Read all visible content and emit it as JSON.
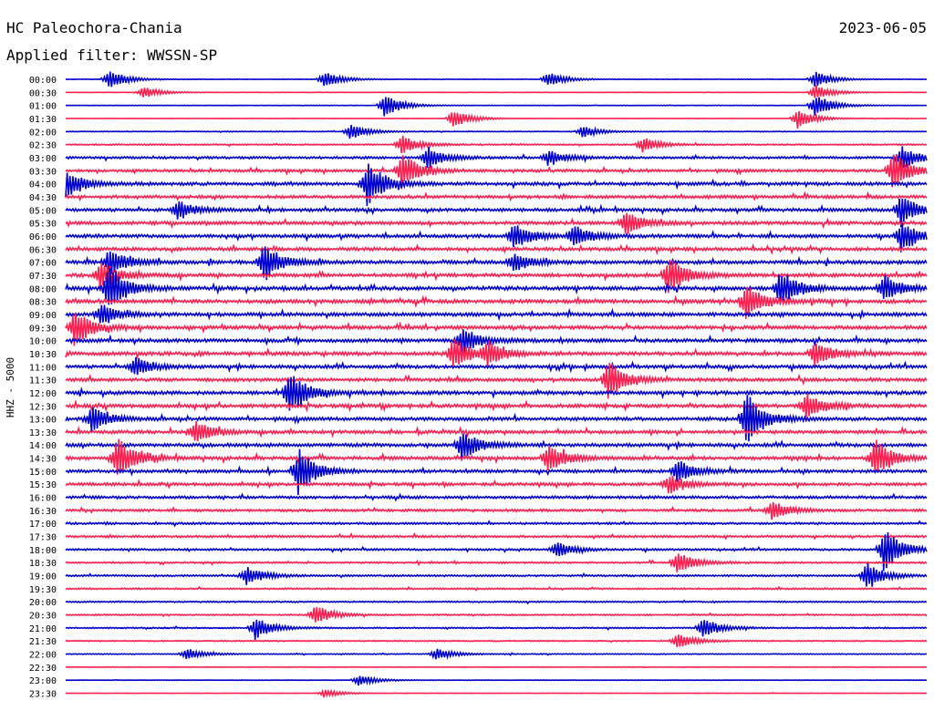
{
  "header": {
    "station": "HC Paleochora-Chania",
    "date": "2023-06-05",
    "filter": "Applied filter: WWSSN-SP"
  },
  "chart_data": {
    "type": "line",
    "title": "HC Paleochora-Chania",
    "channel_label": "HHZ - 5000",
    "row_times": [
      "00:00",
      "00:30",
      "01:00",
      "01:30",
      "02:00",
      "02:30",
      "03:00",
      "03:30",
      "04:00",
      "04:30",
      "05:00",
      "05:30",
      "06:00",
      "06:30",
      "07:00",
      "07:30",
      "08:00",
      "08:30",
      "09:00",
      "09:30",
      "10:00",
      "10:30",
      "11:00",
      "11:30",
      "12:00",
      "12:30",
      "13:00",
      "13:30",
      "14:00",
      "14:30",
      "15:00",
      "15:30",
      "16:00",
      "16:30",
      "17:00",
      "17:30",
      "18:00",
      "18:30",
      "19:00",
      "19:30",
      "20:00",
      "20:30",
      "21:00",
      "21:30",
      "22:00",
      "22:30",
      "23:00",
      "23:30"
    ],
    "row_noise_level": [
      0.15,
      0.1,
      0.12,
      0.12,
      0.2,
      0.35,
      0.6,
      0.7,
      0.85,
      0.8,
      0.8,
      0.85,
      0.85,
      0.85,
      0.9,
      0.9,
      0.95,
      0.95,
      0.9,
      0.9,
      0.9,
      0.9,
      0.85,
      0.85,
      0.9,
      0.9,
      0.85,
      0.85,
      0.85,
      0.85,
      0.8,
      0.75,
      0.7,
      0.65,
      0.55,
      0.55,
      0.5,
      0.45,
      0.45,
      0.4,
      0.35,
      0.35,
      0.35,
      0.3,
      0.25,
      0.15,
      0.12,
      0.12
    ],
    "events": [
      {
        "row": 0,
        "t": 0.05,
        "a": 0.5
      },
      {
        "row": 0,
        "t": 0.3,
        "a": 0.4
      },
      {
        "row": 0,
        "t": 0.56,
        "a": 0.4
      },
      {
        "row": 0,
        "t": 0.87,
        "a": 0.4
      },
      {
        "row": 1,
        "t": 0.09,
        "a": 0.3
      },
      {
        "row": 1,
        "t": 0.87,
        "a": 0.4
      },
      {
        "row": 2,
        "t": 0.37,
        "a": 0.6
      },
      {
        "row": 2,
        "t": 0.87,
        "a": 0.6
      },
      {
        "row": 3,
        "t": 0.45,
        "a": 0.5
      },
      {
        "row": 3,
        "t": 0.85,
        "a": 0.5
      },
      {
        "row": 4,
        "t": 0.33,
        "a": 0.4
      },
      {
        "row": 4,
        "t": 0.6,
        "a": 0.3
      },
      {
        "row": 5,
        "t": 0.39,
        "a": 0.5
      },
      {
        "row": 5,
        "t": 0.67,
        "a": 0.4
      },
      {
        "row": 6,
        "t": 0.42,
        "a": 0.6
      },
      {
        "row": 6,
        "t": 0.56,
        "a": 0.4
      },
      {
        "row": 6,
        "t": 0.97,
        "a": 0.6
      },
      {
        "row": 7,
        "t": 0.39,
        "a": 1.0
      },
      {
        "row": 7,
        "t": 0.96,
        "a": 1.0
      },
      {
        "row": 8,
        "t": 0.0,
        "a": 0.7
      },
      {
        "row": 8,
        "t": 0.35,
        "a": 1.2
      },
      {
        "row": 10,
        "t": 0.13,
        "a": 0.5
      },
      {
        "row": 10,
        "t": 0.97,
        "a": 0.8
      },
      {
        "row": 11,
        "t": 0.65,
        "a": 0.6
      },
      {
        "row": 12,
        "t": 0.52,
        "a": 0.7
      },
      {
        "row": 12,
        "t": 0.59,
        "a": 0.6
      },
      {
        "row": 12,
        "t": 0.97,
        "a": 0.8
      },
      {
        "row": 14,
        "t": 0.05,
        "a": 0.7
      },
      {
        "row": 14,
        "t": 0.23,
        "a": 1.0
      },
      {
        "row": 14,
        "t": 0.52,
        "a": 0.5
      },
      {
        "row": 15,
        "t": 0.04,
        "a": 0.8
      },
      {
        "row": 15,
        "t": 0.7,
        "a": 1.0
      },
      {
        "row": 16,
        "t": 0.05,
        "a": 1.2
      },
      {
        "row": 16,
        "t": 0.83,
        "a": 1.0
      },
      {
        "row": 16,
        "t": 0.95,
        "a": 0.7
      },
      {
        "row": 17,
        "t": 0.79,
        "a": 0.9
      },
      {
        "row": 18,
        "t": 0.04,
        "a": 0.5
      },
      {
        "row": 19,
        "t": 0.01,
        "a": 0.9
      },
      {
        "row": 20,
        "t": 0.46,
        "a": 0.7
      },
      {
        "row": 21,
        "t": 0.45,
        "a": 0.8
      },
      {
        "row": 21,
        "t": 0.49,
        "a": 0.6
      },
      {
        "row": 21,
        "t": 0.87,
        "a": 0.6
      },
      {
        "row": 22,
        "t": 0.08,
        "a": 0.5
      },
      {
        "row": 23,
        "t": 0.63,
        "a": 1.0
      },
      {
        "row": 24,
        "t": 0.26,
        "a": 1.2
      },
      {
        "row": 25,
        "t": 0.86,
        "a": 0.7
      },
      {
        "row": 26,
        "t": 0.03,
        "a": 0.6
      },
      {
        "row": 26,
        "t": 0.79,
        "a": 1.4
      },
      {
        "row": 27,
        "t": 0.15,
        "a": 0.6
      },
      {
        "row": 28,
        "t": 0.46,
        "a": 0.8
      },
      {
        "row": 29,
        "t": 0.06,
        "a": 1.1
      },
      {
        "row": 29,
        "t": 0.56,
        "a": 0.8
      },
      {
        "row": 29,
        "t": 0.94,
        "a": 1.0
      },
      {
        "row": 30,
        "t": 0.27,
        "a": 1.2
      },
      {
        "row": 30,
        "t": 0.71,
        "a": 0.6
      },
      {
        "row": 31,
        "t": 0.7,
        "a": 0.5
      },
      {
        "row": 33,
        "t": 0.82,
        "a": 0.5
      },
      {
        "row": 36,
        "t": 0.57,
        "a": 0.4
      },
      {
        "row": 36,
        "t": 0.95,
        "a": 1.2
      },
      {
        "row": 37,
        "t": 0.71,
        "a": 0.6
      },
      {
        "row": 38,
        "t": 0.21,
        "a": 0.5
      },
      {
        "row": 38,
        "t": 0.93,
        "a": 0.7
      },
      {
        "row": 41,
        "t": 0.29,
        "a": 0.5
      },
      {
        "row": 42,
        "t": 0.22,
        "a": 0.6
      },
      {
        "row": 42,
        "t": 0.74,
        "a": 0.5
      },
      {
        "row": 43,
        "t": 0.71,
        "a": 0.4
      },
      {
        "row": 44,
        "t": 0.14,
        "a": 0.3
      },
      {
        "row": 44,
        "t": 0.43,
        "a": 0.3
      },
      {
        "row": 46,
        "t": 0.34,
        "a": 0.3
      },
      {
        "row": 47,
        "t": 0.3,
        "a": 0.2
      }
    ],
    "colors": [
      "#0000cc",
      "#ff2050"
    ]
  }
}
